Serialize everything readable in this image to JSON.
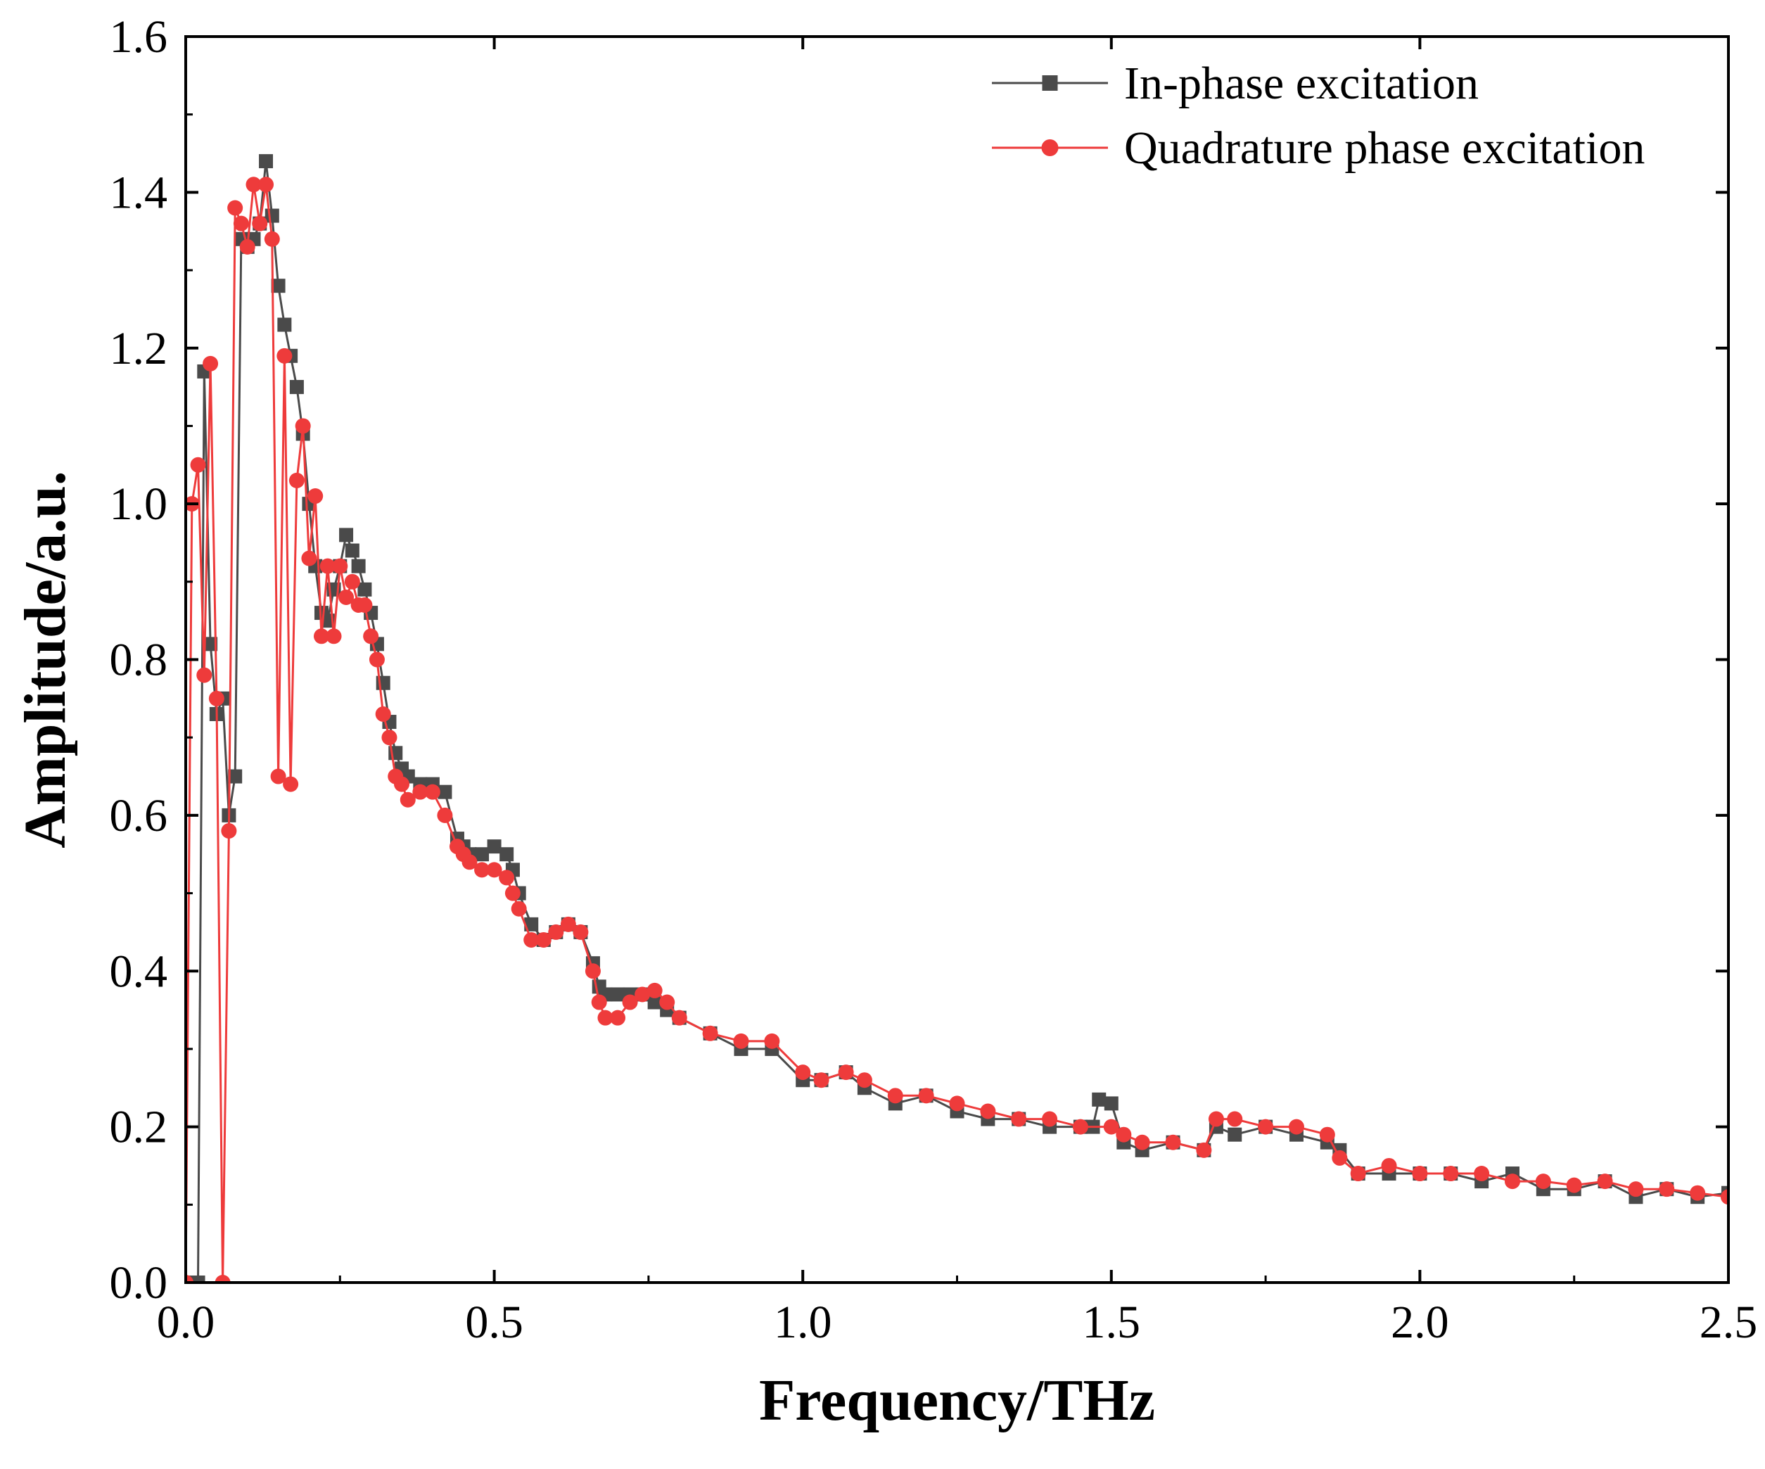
{
  "chart_data": {
    "type": "line",
    "xlabel": "Frequency/THz",
    "ylabel": "Amplitude/a.u.",
    "xlim": [
      0,
      2.5
    ],
    "ylim": [
      0,
      1.6
    ],
    "xticks": [
      0.0,
      0.5,
      1.0,
      1.5,
      2.0,
      2.5
    ],
    "xtick_labels": [
      "0.0",
      "0.5",
      "1.0",
      "1.5",
      "2.0",
      "2.5"
    ],
    "yticks": [
      0.0,
      0.2,
      0.4,
      0.6,
      0.8,
      1.0,
      1.2,
      1.4,
      1.6
    ],
    "ytick_labels": [
      "0.0",
      "0.2",
      "0.4",
      "0.6",
      "0.8",
      "1.0",
      "1.2",
      "1.4",
      "1.6"
    ],
    "grid": false,
    "legend_position": "top-right",
    "series": [
      {
        "name": "In-phase excitation",
        "color": "#4a4a4a",
        "marker": "square",
        "x": [
          0.0,
          0.01,
          0.02,
          0.03,
          0.04,
          0.05,
          0.06,
          0.07,
          0.08,
          0.09,
          0.1,
          0.11,
          0.12,
          0.13,
          0.14,
          0.15,
          0.16,
          0.17,
          0.18,
          0.19,
          0.2,
          0.21,
          0.22,
          0.23,
          0.24,
          0.25,
          0.26,
          0.27,
          0.28,
          0.29,
          0.3,
          0.31,
          0.32,
          0.33,
          0.34,
          0.35,
          0.36,
          0.38,
          0.4,
          0.42,
          0.44,
          0.45,
          0.46,
          0.48,
          0.5,
          0.52,
          0.53,
          0.54,
          0.56,
          0.58,
          0.6,
          0.62,
          0.64,
          0.66,
          0.67,
          0.68,
          0.7,
          0.72,
          0.74,
          0.76,
          0.78,
          0.8,
          0.85,
          0.9,
          0.95,
          1.0,
          1.03,
          1.07,
          1.1,
          1.15,
          1.2,
          1.25,
          1.3,
          1.35,
          1.4,
          1.45,
          1.47,
          1.48,
          1.5,
          1.52,
          1.55,
          1.6,
          1.65,
          1.67,
          1.7,
          1.75,
          1.8,
          1.85,
          1.87,
          1.9,
          1.95,
          2.0,
          2.05,
          2.1,
          2.15,
          2.2,
          2.25,
          2.3,
          2.35,
          2.4,
          2.45,
          2.5
        ],
        "y": [
          0.0,
          0.0,
          0.0,
          1.17,
          0.82,
          0.73,
          0.75,
          0.6,
          0.65,
          1.34,
          1.33,
          1.34,
          1.36,
          1.44,
          1.37,
          1.28,
          1.23,
          1.19,
          1.15,
          1.09,
          1.0,
          0.92,
          0.86,
          0.85,
          0.89,
          0.92,
          0.96,
          0.94,
          0.92,
          0.89,
          0.86,
          0.82,
          0.77,
          0.72,
          0.68,
          0.66,
          0.65,
          0.64,
          0.64,
          0.63,
          0.57,
          0.56,
          0.55,
          0.55,
          0.56,
          0.55,
          0.53,
          0.5,
          0.46,
          0.44,
          0.45,
          0.46,
          0.45,
          0.41,
          0.38,
          0.37,
          0.37,
          0.37,
          0.37,
          0.36,
          0.35,
          0.34,
          0.32,
          0.3,
          0.3,
          0.26,
          0.26,
          0.27,
          0.25,
          0.23,
          0.24,
          0.22,
          0.21,
          0.21,
          0.2,
          0.2,
          0.2,
          0.235,
          0.23,
          0.18,
          0.17,
          0.18,
          0.17,
          0.2,
          0.19,
          0.2,
          0.19,
          0.18,
          0.17,
          0.14,
          0.14,
          0.14,
          0.14,
          0.13,
          0.14,
          0.12,
          0.12,
          0.13,
          0.11,
          0.12,
          0.11,
          0.115
        ]
      },
      {
        "name": "Quadrature phase excitation",
        "color": "#ee3b3b",
        "marker": "circle",
        "x": [
          0.0,
          0.01,
          0.02,
          0.03,
          0.04,
          0.05,
          0.06,
          0.07,
          0.08,
          0.09,
          0.1,
          0.11,
          0.12,
          0.13,
          0.14,
          0.15,
          0.16,
          0.17,
          0.18,
          0.19,
          0.2,
          0.21,
          0.22,
          0.23,
          0.24,
          0.25,
          0.26,
          0.27,
          0.28,
          0.29,
          0.3,
          0.31,
          0.32,
          0.33,
          0.34,
          0.35,
          0.36,
          0.38,
          0.4,
          0.42,
          0.44,
          0.45,
          0.46,
          0.48,
          0.5,
          0.52,
          0.53,
          0.54,
          0.56,
          0.58,
          0.6,
          0.62,
          0.64,
          0.66,
          0.67,
          0.68,
          0.7,
          0.72,
          0.74,
          0.76,
          0.78,
          0.8,
          0.85,
          0.9,
          0.95,
          1.0,
          1.03,
          1.07,
          1.1,
          1.15,
          1.2,
          1.25,
          1.3,
          1.35,
          1.4,
          1.45,
          1.5,
          1.52,
          1.55,
          1.6,
          1.65,
          1.67,
          1.7,
          1.75,
          1.8,
          1.85,
          1.87,
          1.9,
          1.95,
          2.0,
          2.05,
          2.1,
          2.15,
          2.2,
          2.25,
          2.3,
          2.35,
          2.4,
          2.45,
          2.5
        ],
        "y": [
          0.0,
          1.0,
          1.05,
          0.78,
          1.18,
          0.75,
          0.0,
          0.58,
          1.38,
          1.36,
          1.33,
          1.41,
          1.36,
          1.41,
          1.34,
          0.65,
          1.19,
          0.64,
          1.03,
          1.1,
          0.93,
          1.01,
          0.83,
          0.92,
          0.83,
          0.92,
          0.88,
          0.9,
          0.87,
          0.87,
          0.83,
          0.8,
          0.73,
          0.7,
          0.65,
          0.64,
          0.62,
          0.63,
          0.63,
          0.6,
          0.56,
          0.55,
          0.54,
          0.53,
          0.53,
          0.52,
          0.5,
          0.48,
          0.44,
          0.44,
          0.45,
          0.46,
          0.45,
          0.4,
          0.36,
          0.34,
          0.34,
          0.36,
          0.37,
          0.375,
          0.36,
          0.34,
          0.32,
          0.31,
          0.31,
          0.27,
          0.26,
          0.27,
          0.26,
          0.24,
          0.24,
          0.23,
          0.22,
          0.21,
          0.21,
          0.2,
          0.2,
          0.19,
          0.18,
          0.18,
          0.17,
          0.21,
          0.21,
          0.2,
          0.2,
          0.19,
          0.16,
          0.14,
          0.15,
          0.14,
          0.14,
          0.14,
          0.13,
          0.13,
          0.125,
          0.13,
          0.12,
          0.12,
          0.115,
          0.11
        ]
      }
    ]
  }
}
